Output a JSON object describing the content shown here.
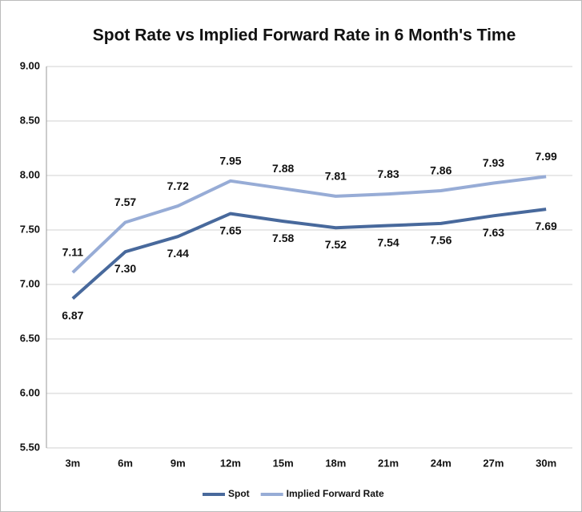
{
  "chart_data": {
    "type": "line",
    "title": "Spot Rate vs Implied Forward Rate in 6 Month's Time",
    "categories": [
      "3m",
      "6m",
      "9m",
      "12m",
      "15m",
      "18m",
      "21m",
      "24m",
      "27m",
      "30m"
    ],
    "series": [
      {
        "name": "Spot",
        "color": "#48699c",
        "values": [
          6.87,
          7.3,
          7.44,
          7.65,
          7.58,
          7.52,
          7.54,
          7.56,
          7.63,
          7.69
        ],
        "value_labels": [
          "6.87",
          "7.30",
          "7.44",
          "7.65",
          "7.58",
          "7.52",
          "7.54",
          "7.56",
          "7.63",
          "7.69"
        ]
      },
      {
        "name": "Implied Forward Rate",
        "color": "#97acd6",
        "values": [
          7.11,
          7.57,
          7.72,
          7.95,
          7.88,
          7.81,
          7.83,
          7.86,
          7.93,
          7.99
        ],
        "value_labels": [
          "7.11",
          "7.57",
          "7.72",
          "7.95",
          "7.88",
          "7.81",
          "7.83",
          "7.86",
          "7.93",
          "7.99"
        ]
      }
    ],
    "ylim": [
      5.5,
      9.0
    ],
    "yticks": [
      {
        "value": 5.5,
        "label": "5.50"
      },
      {
        "value": 6.0,
        "label": "6.00"
      },
      {
        "value": 6.5,
        "label": "6.50"
      },
      {
        "value": 7.0,
        "label": "7.00"
      },
      {
        "value": 7.5,
        "label": "7.50"
      },
      {
        "value": 8.0,
        "label": "8.00"
      },
      {
        "value": 8.5,
        "label": "8.50"
      },
      {
        "value": 9.0,
        "label": "9.00"
      }
    ],
    "grid": true,
    "legend": "bottom"
  }
}
